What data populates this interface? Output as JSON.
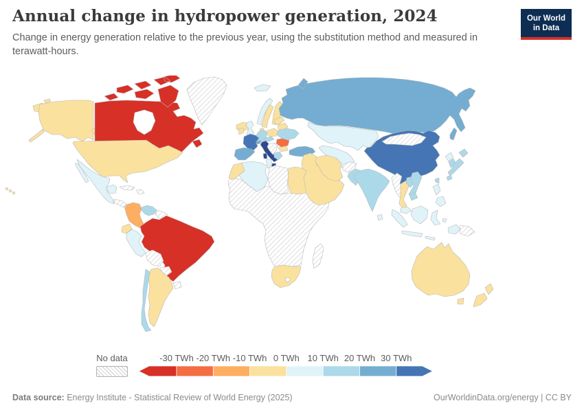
{
  "header": {
    "title": "Annual change in hydropower generation, 2024",
    "logo": {
      "line1": "Our World",
      "line2": "in Data"
    }
  },
  "subtitle": "Change in energy generation relative to the previous year, using the substitution method and measured in terawatt-hours.",
  "legend": {
    "no_data_label": "No data",
    "tick_labels": [
      "-30 TWh",
      "-20 TWh",
      "-10 TWh",
      "0 TWh",
      "10 TWh",
      "20 TWh",
      "30 TWh"
    ],
    "bar_colors": [
      "#d73027",
      "#f46d43",
      "#fdae61",
      "#fbe19e",
      "#e0f3f8",
      "#abd9e9",
      "#74add1",
      "#4575b4"
    ]
  },
  "footer": {
    "source_label": "Data source:",
    "source_text": " Energy Institute - Statistical Review of World Energy (2025)",
    "right_text": "OurWorldinData.org/energy | CC BY"
  },
  "chart_data": {
    "type": "choropleth_map",
    "title": "Annual change in hydropower generation, 2024",
    "unit": "TWh",
    "year": 2024,
    "legend_position": "bottom",
    "bins": [
      {
        "key": "lt-30",
        "label": "< -30 TWh",
        "color": "#d73027"
      },
      {
        "key": "-30--20",
        "label": "-30 to -20 TWh",
        "color": "#f46d43"
      },
      {
        "key": "-20--10",
        "label": "-20 to -10 TWh",
        "color": "#fdae61"
      },
      {
        "key": "-10-0",
        "label": "-10 to 0 TWh",
        "color": "#fbe19e"
      },
      {
        "key": "0-10",
        "label": "0 to 10 TWh",
        "color": "#e0f3f8"
      },
      {
        "key": "10-20",
        "label": "10 to 20 TWh",
        "color": "#abd9e9"
      },
      {
        "key": "20-30",
        "label": "20 to 30 TWh",
        "color": "#74add1"
      },
      {
        "key": "gt30",
        "label": "> 30 TWh",
        "color": "#4575b4"
      },
      {
        "key": "gt30-deep",
        "label": "> 30 TWh (deepest shade)",
        "color": "#2d4a90"
      },
      {
        "key": "no-data",
        "label": "No data",
        "color": "hatch"
      }
    ],
    "countries": {
      "Canada": "lt-30",
      "United States": "-10-0",
      "Hawaii": "-10-0",
      "Mexico": "0-10",
      "Greenland": "no-data",
      "Iceland": "-10-0",
      "Cuba": "no-data",
      "Hispaniola": "no-data",
      "Guatemala-Honduras": "no-data",
      "Panama-Costa Rica": "0-10",
      "Colombia": "-20--10",
      "Venezuela": "10-20",
      "Guyanas": "no-data",
      "Ecuador": "-10-0",
      "Peru": "0-10",
      "Brazil": "lt-30",
      "Bolivia": "no-data",
      "Paraguay": "no-data",
      "Uruguay": "no-data",
      "Chile": "10-20",
      "Argentina": "-10-0",
      "United Kingdom": "0-10",
      "Ireland": "-10-0",
      "Norway": "0-10",
      "Sweden": "-10-0",
      "Finland": "-10-0",
      "Denmark": "-10-0",
      "Baltic states": "-10-0",
      "Belarus": "-10-0",
      "Poland": "-10-0",
      "Germany": "10-20",
      "France": "gt30",
      "Spain": "20-30",
      "Italy": "gt30-deep",
      "Switzerland": "20-30",
      "Austria": "10-20",
      "Balkans": "no-data",
      "Romania": "-30--20",
      "Bulgaria": "-10-0",
      "Greece": "10-20",
      "Ukraine": "10-20",
      "Turkey": "20-30",
      "Russia": "20-30",
      "Svalbard": "0-10",
      "Kazakhstan": "0-10",
      "Central Asia": "0-10",
      "Afghanistan": "no-data",
      "Pakistan": "10-20",
      "India": "10-20",
      "Sri Lanka": "0-10",
      "China": "gt30",
      "Mongolia": "no-data",
      "North Korea": "0-10",
      "South Korea": "10-20",
      "Japan": "10-20",
      "Taiwan": "10-20",
      "Myanmar": "no-data",
      "Thailand": "-10-0",
      "Laos": "10-20",
      "Vietnam": "10-20",
      "Cambodia": "10-20",
      "Malaysia": "0-10",
      "Indonesia": "0-10",
      "Philippines": "0-10",
      "Papua New Guinea": "no-data",
      "Australia": "-10-0",
      "New Zealand": "-10-0",
      "Morocco": "-10-0",
      "Algeria": "0-10",
      "Tunisia": "0-10",
      "Libya": "no-data",
      "Egypt": "-10-0",
      "Middle East": "-10-0",
      "Iran": "-10-0",
      "Sub-Saharan Africa": "no-data",
      "South Africa": "no-yellow",
      "Madagascar": "no-data"
    }
  }
}
